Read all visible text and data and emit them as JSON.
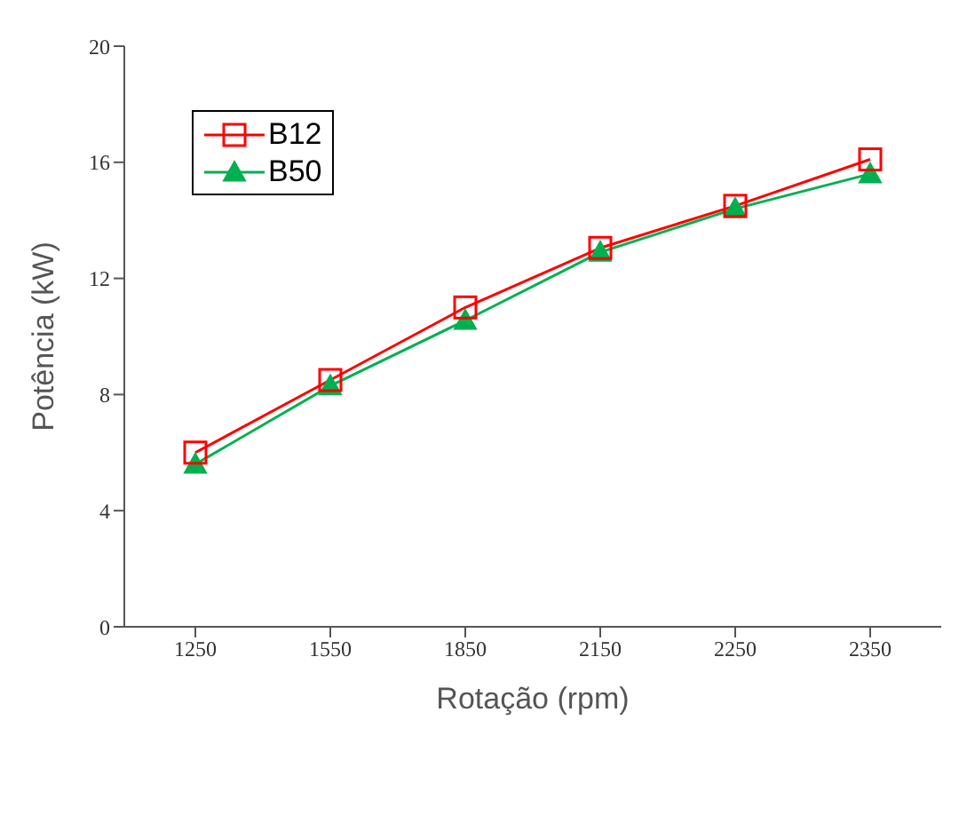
{
  "chart_data": {
    "type": "line",
    "xlabel": "Rotação (rpm)",
    "ylabel": "Potência (kW)",
    "categories": [
      "1250",
      "1550",
      "1850",
      "2150",
      "2250",
      "2350"
    ],
    "series": [
      {
        "name": "B12",
        "color": "#ff0000",
        "marker": "square",
        "values": [
          6.0,
          8.5,
          11.0,
          13.05,
          14.5,
          16.1
        ]
      },
      {
        "name": "B50",
        "color": "#00b050",
        "marker": "triangle",
        "values": [
          5.6,
          8.3,
          10.55,
          12.9,
          14.4,
          15.6
        ]
      }
    ],
    "ylim": [
      0,
      20
    ],
    "yticks": [
      0,
      4,
      8,
      12,
      16,
      20
    ],
    "grid": false,
    "legend": "top left"
  }
}
